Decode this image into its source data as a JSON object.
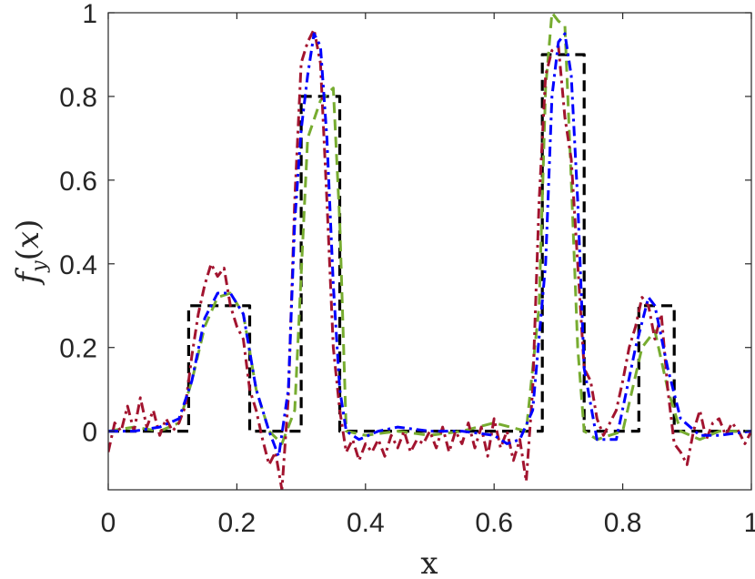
{
  "chart_data": {
    "type": "line",
    "title": "",
    "xlabel": "x",
    "ylabel": "f_y(x)",
    "xlim": [
      0,
      1
    ],
    "ylim": [
      -0.14,
      1.0
    ],
    "xticks": [
      0,
      0.2,
      0.4,
      0.6,
      0.8,
      1
    ],
    "xtick_labels": [
      "0",
      "0.2",
      "0.4",
      "0.6",
      "0.8",
      "1"
    ],
    "yticks": [
      0,
      0.2,
      0.4,
      0.6,
      0.8,
      1
    ],
    "ytick_labels": [
      "0",
      "0.2",
      "0.4",
      "0.6",
      "0.8",
      "1"
    ],
    "grid": false,
    "legend": "none",
    "series": [
      {
        "style": "dashed",
        "color": "#000000",
        "x": [
          0,
          0.125,
          0.125,
          0.22,
          0.22,
          0.3,
          0.3,
          0.36,
          0.36,
          0.675,
          0.675,
          0.74,
          0.74,
          0.825,
          0.825,
          0.88,
          0.88,
          1
        ],
        "y": [
          0,
          0,
          0.3,
          0.3,
          0,
          0,
          0.8,
          0.8,
          0,
          0,
          0.9,
          0.9,
          0,
          0,
          0.3,
          0.3,
          0,
          0
        ]
      },
      {
        "style": "dashed",
        "color": "#77ac30",
        "x": [
          0,
          0.04,
          0.08,
          0.11,
          0.13,
          0.15,
          0.17,
          0.19,
          0.21,
          0.23,
          0.25,
          0.27,
          0.29,
          0.31,
          0.33,
          0.35,
          0.36,
          0.37,
          0.4,
          0.45,
          0.5,
          0.55,
          0.6,
          0.65,
          0.67,
          0.68,
          0.69,
          0.7,
          0.71,
          0.72,
          0.73,
          0.74,
          0.76,
          0.8,
          0.83,
          0.85,
          0.87,
          0.89,
          0.92,
          0.95,
          1
        ],
        "y": [
          0,
          0.01,
          0.0,
          0.02,
          0.12,
          0.25,
          0.32,
          0.33,
          0.28,
          0.1,
          0.0,
          -0.03,
          0.05,
          0.7,
          0.79,
          0.82,
          0.5,
          0.0,
          -0.01,
          0.0,
          -0.01,
          0.0,
          0.02,
          0.0,
          0.3,
          0.82,
          1.0,
          0.98,
          0.97,
          0.6,
          0.2,
          0.0,
          -0.02,
          0.0,
          0.2,
          0.24,
          0.1,
          0.0,
          -0.02,
          0.0,
          0.0
        ]
      },
      {
        "style": "dash-dot",
        "color": "#a2142f",
        "x": [
          0,
          0.01,
          0.02,
          0.03,
          0.04,
          0.05,
          0.06,
          0.07,
          0.08,
          0.09,
          0.1,
          0.11,
          0.12,
          0.13,
          0.14,
          0.15,
          0.16,
          0.17,
          0.18,
          0.19,
          0.2,
          0.21,
          0.22,
          0.23,
          0.24,
          0.25,
          0.26,
          0.27,
          0.28,
          0.29,
          0.3,
          0.31,
          0.32,
          0.33,
          0.34,
          0.35,
          0.36,
          0.37,
          0.38,
          0.39,
          0.4,
          0.41,
          0.42,
          0.43,
          0.44,
          0.45,
          0.46,
          0.47,
          0.48,
          0.49,
          0.5,
          0.51,
          0.52,
          0.53,
          0.54,
          0.55,
          0.56,
          0.57,
          0.58,
          0.59,
          0.6,
          0.61,
          0.62,
          0.63,
          0.64,
          0.65,
          0.66,
          0.67,
          0.68,
          0.69,
          0.7,
          0.71,
          0.72,
          0.73,
          0.74,
          0.75,
          0.76,
          0.77,
          0.78,
          0.79,
          0.8,
          0.81,
          0.82,
          0.83,
          0.84,
          0.85,
          0.86,
          0.87,
          0.88,
          0.89,
          0.9,
          0.91,
          0.92,
          0.93,
          0.94,
          0.95,
          0.96,
          0.97,
          0.98,
          0.99,
          1
        ],
        "y": [
          -0.05,
          0.02,
          0.0,
          0.06,
          0.0,
          0.08,
          0.01,
          0.05,
          -0.01,
          0.03,
          0.0,
          0.02,
          0.06,
          0.18,
          0.28,
          0.35,
          0.4,
          0.37,
          0.39,
          0.3,
          0.25,
          0.22,
          0.1,
          0.05,
          -0.02,
          -0.08,
          -0.05,
          -0.14,
          0.08,
          0.55,
          0.88,
          0.93,
          0.96,
          0.88,
          0.55,
          0.2,
          0.05,
          -0.05,
          -0.02,
          -0.07,
          -0.03,
          -0.05,
          -0.02,
          -0.06,
          -0.01,
          -0.04,
          0.0,
          -0.05,
          -0.02,
          -0.03,
          0.0,
          -0.04,
          0.01,
          -0.05,
          0.0,
          -0.03,
          0.02,
          -0.04,
          0.01,
          -0.06,
          0.03,
          -0.04,
          0.0,
          -0.07,
          -0.02,
          -0.12,
          0.1,
          0.55,
          0.85,
          0.91,
          0.92,
          0.75,
          0.65,
          0.4,
          0.15,
          0.12,
          0.03,
          -0.01,
          0.02,
          0.05,
          0.12,
          0.2,
          0.25,
          0.32,
          0.3,
          0.22,
          0.28,
          0.1,
          -0.03,
          -0.05,
          -0.08,
          0.0,
          0.05,
          -0.02,
          0.02,
          0.03,
          -0.01,
          0.02,
          0.0,
          -0.03,
          0.0
        ]
      },
      {
        "style": "dash-dot",
        "color": "#0000ff",
        "x": [
          0,
          0.04,
          0.08,
          0.11,
          0.13,
          0.15,
          0.17,
          0.19,
          0.21,
          0.23,
          0.25,
          0.265,
          0.28,
          0.29,
          0.3,
          0.31,
          0.32,
          0.33,
          0.34,
          0.35,
          0.36,
          0.37,
          0.39,
          0.42,
          0.45,
          0.5,
          0.55,
          0.6,
          0.62,
          0.64,
          0.66,
          0.68,
          0.69,
          0.7,
          0.71,
          0.72,
          0.73,
          0.74,
          0.76,
          0.79,
          0.82,
          0.84,
          0.85,
          0.87,
          0.89,
          0.92,
          0.95,
          1
        ],
        "y": [
          0,
          0.0,
          0.01,
          0.03,
          0.12,
          0.27,
          0.33,
          0.33,
          0.28,
          0.1,
          0.0,
          -0.06,
          0.1,
          0.5,
          0.72,
          0.85,
          0.95,
          0.92,
          0.7,
          0.35,
          0.1,
          0.0,
          -0.02,
          0.0,
          0.01,
          0.0,
          0.0,
          -0.01,
          -0.03,
          -0.02,
          0.05,
          0.4,
          0.8,
          0.93,
          0.95,
          0.85,
          0.55,
          0.15,
          -0.02,
          -0.02,
          0.2,
          0.32,
          0.3,
          0.15,
          0.03,
          -0.01,
          -0.01,
          0.0
        ]
      }
    ]
  }
}
